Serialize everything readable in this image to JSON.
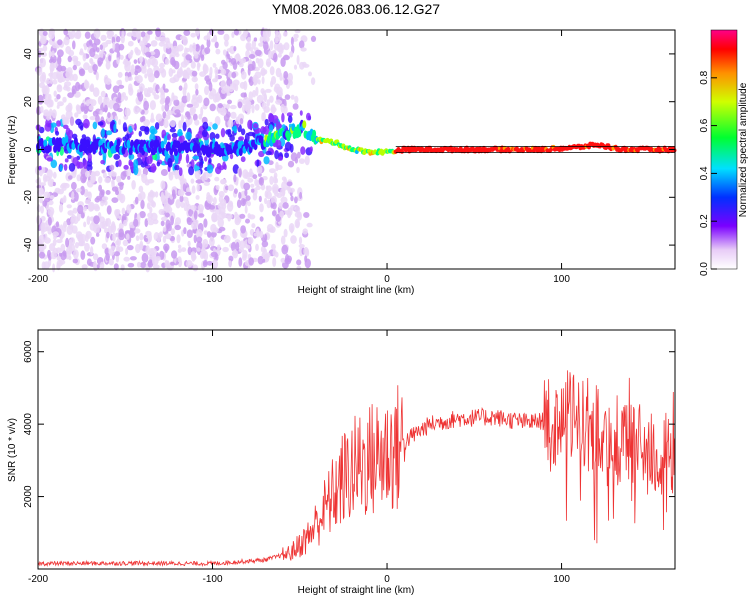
{
  "figure": {
    "title": "YM08.2026.083.06.12.G27"
  },
  "chart_data": [
    {
      "type": "heatmap",
      "title": "YM08.2026.083.06.12.G27",
      "xlabel": "Height of straight line (km)",
      "ylabel": "Frequency (Hz)",
      "xlim": [
        -200,
        165
      ],
      "ylim": [
        -50,
        50
      ],
      "xticks": [
        -200,
        -100,
        0,
        100
      ],
      "yticks": [
        -40,
        -20,
        0,
        20,
        40
      ],
      "colorbar": {
        "label": "Normalized spectral amplitude",
        "range": [
          0,
          1
        ],
        "ticks": [
          0.0,
          0.2,
          0.4,
          0.6,
          0.8
        ]
      },
      "dominant_frequency_trace": [
        {
          "x": -200,
          "y": 2
        },
        {
          "x": -150,
          "y": 1
        },
        {
          "x": -100,
          "y": 0
        },
        {
          "x": -80,
          "y": 1
        },
        {
          "x": -60,
          "y": 6
        },
        {
          "x": -48,
          "y": 9
        },
        {
          "x": -40,
          "y": 4
        },
        {
          "x": -30,
          "y": 3
        },
        {
          "x": -20,
          "y": 0
        },
        {
          "x": -10,
          "y": -1
        },
        {
          "x": 0,
          "y": -1
        },
        {
          "x": 10,
          "y": 0
        },
        {
          "x": 90,
          "y": 0
        },
        {
          "x": 110,
          "y": 1
        },
        {
          "x": 120,
          "y": 2
        },
        {
          "x": 135,
          "y": 0
        },
        {
          "x": 165,
          "y": 0
        }
      ]
    },
    {
      "type": "line",
      "xlabel": "Height of straight line (km)",
      "ylabel": "SNR (10 * v/v)",
      "xlim": [
        -200,
        165
      ],
      "ylim": [
        0,
        6600
      ],
      "xticks": [
        -200,
        -100,
        0,
        100
      ],
      "yticks": [
        2000,
        4000,
        6000
      ],
      "series": [
        {
          "name": "SNR",
          "color": "#ee3333",
          "envelope": [
            {
              "x": -200,
              "y": 150
            },
            {
              "x": -150,
              "y": 160
            },
            {
              "x": -100,
              "y": 150
            },
            {
              "x": -70,
              "y": 250
            },
            {
              "x": -55,
              "y": 450
            },
            {
              "x": -45,
              "y": 900
            },
            {
              "x": -35,
              "y": 1700
            },
            {
              "x": -25,
              "y": 2500
            },
            {
              "x": -15,
              "y": 2900
            },
            {
              "x": -5,
              "y": 3100
            },
            {
              "x": 5,
              "y": 3300
            },
            {
              "x": 15,
              "y": 3700
            },
            {
              "x": 25,
              "y": 4000
            },
            {
              "x": 40,
              "y": 4150
            },
            {
              "x": 60,
              "y": 4200
            },
            {
              "x": 80,
              "y": 4050
            },
            {
              "x": 95,
              "y": 4100
            },
            {
              "x": 105,
              "y": 4200
            },
            {
              "x": 115,
              "y": 4000
            },
            {
              "x": 125,
              "y": 3600
            },
            {
              "x": 140,
              "y": 3400
            },
            {
              "x": 165,
              "y": 3000
            }
          ]
        }
      ]
    }
  ]
}
